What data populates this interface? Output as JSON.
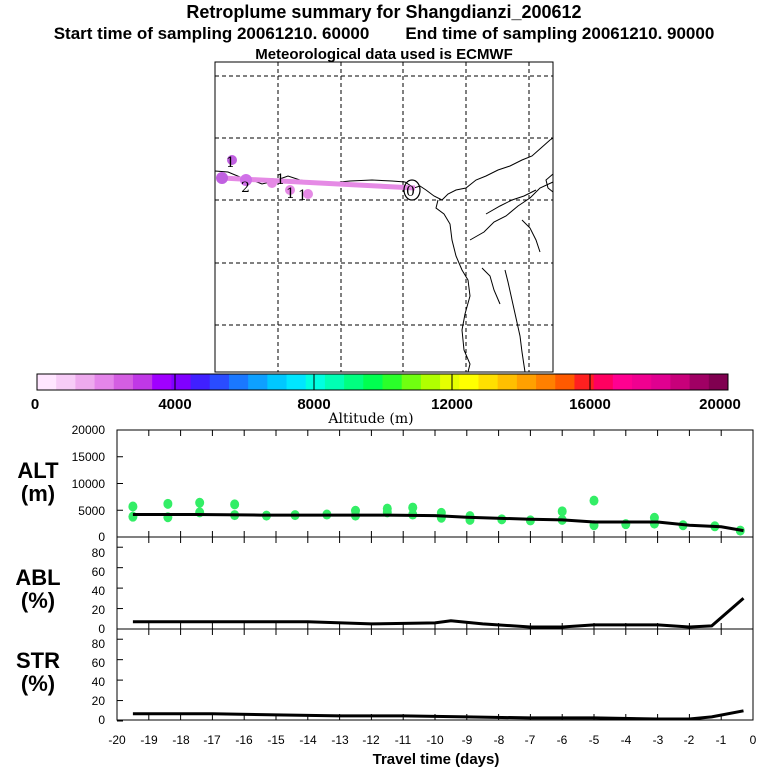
{
  "title": "Retroplume summary for Shangdianzi_200612",
  "start_label": "Start time of sampling 20061210. 60000",
  "end_label": "End time of sampling 20061210. 90000",
  "met_label": "Meteorological data used is ECMWF",
  "colorbar": {
    "label": "Altitude (m)",
    "ticks": [
      "0",
      "4000",
      "8000",
      "12000",
      "16000",
      "20000"
    ],
    "colors": [
      "#ffe6ff",
      "#f7ccf7",
      "#eeaaee",
      "#e485ea",
      "#d45ee2",
      "#c038e6",
      "#a000ff",
      "#8000ff",
      "#4020ff",
      "#2a4cff",
      "#1a78ff",
      "#0ea0ff",
      "#00c8ff",
      "#00e6ff",
      "#00ffe0",
      "#00ffb4",
      "#00ff80",
      "#00ff50",
      "#2aff2a",
      "#70ff10",
      "#b0ff00",
      "#e6ff00",
      "#ffff00",
      "#ffdf00",
      "#ffbf00",
      "#ffa000",
      "#ff8000",
      "#ff5a00",
      "#ff2020",
      "#ff0060",
      "#ff0090",
      "#f00090",
      "#e00090",
      "#c8007a",
      "#a00064",
      "#800050"
    ]
  },
  "map": {
    "plume_labels": [
      "1",
      "2",
      "1",
      "1",
      "1",
      "0"
    ]
  },
  "panels": [
    {
      "label_line1": "ALT",
      "label_line2": "(m)",
      "yticks": [
        "0",
        "5000",
        "10000",
        "15000",
        "20000"
      ]
    },
    {
      "label_line1": "ABL",
      "label_line2": "(%)",
      "yticks": [
        "0",
        "20",
        "40",
        "60",
        "80"
      ]
    },
    {
      "label_line1": "STR",
      "label_line2": "(%)",
      "yticks": [
        "0",
        "20",
        "40",
        "60",
        "80"
      ]
    }
  ],
  "x_axis": {
    "label": "Travel time (days)",
    "ticks": [
      "-20",
      "-19",
      "-18",
      "-17",
      "-16",
      "-15",
      "-14",
      "-13",
      "-12",
      "-11",
      "-10",
      "-9",
      "-8",
      "-7",
      "-6",
      "-5",
      "-4",
      "-3",
      "-2",
      "-1",
      "0"
    ]
  },
  "chart_data": [
    {
      "type": "line",
      "title": "ALT (m)",
      "xlabel": "Travel time (days)",
      "ylabel": "ALT (m)",
      "xlim": [
        -20,
        0
      ],
      "ylim": [
        0,
        20000
      ],
      "x": [
        -19.5,
        -17.5,
        -15.5,
        -13.5,
        -11.5,
        -10.0,
        -9.0,
        -7.0,
        -6.0,
        -5.0,
        -4.0,
        -3.0,
        -2.0,
        -1.0,
        -0.3
      ],
      "series": [
        {
          "name": "mean altitude",
          "values": [
            4200,
            4200,
            4100,
            4100,
            4100,
            4000,
            3700,
            3300,
            3200,
            2800,
            2800,
            2800,
            2200,
            1900,
            1200
          ]
        }
      ],
      "scatter": {
        "x": [
          -19.5,
          -19.5,
          -18.4,
          -18.4,
          -17.4,
          -17.4,
          -16.3,
          -16.3,
          -15.3,
          -14.4,
          -13.4,
          -12.5,
          -12.5,
          -11.5,
          -11.5,
          -10.7,
          -10.7,
          -9.8,
          -9.8,
          -8.9,
          -8.9,
          -7.9,
          -7.0,
          -6.0,
          -6.0,
          -5.0,
          -5.0,
          -4.0,
          -3.1,
          -3.1,
          -2.2,
          -1.2,
          -0.4
        ],
        "y": [
          5700,
          3800,
          6200,
          3700,
          6400,
          4600,
          6100,
          4100,
          4000,
          4100,
          4200,
          4000,
          4900,
          4600,
          5300,
          4200,
          5500,
          3600,
          4500,
          3200,
          3900,
          3300,
          3100,
          3200,
          4800,
          2200,
          6800,
          2400,
          2500,
          3600,
          2200,
          2000,
          1200
        ],
        "color": "#33ee66"
      }
    },
    {
      "type": "line",
      "title": "ABL (%)",
      "xlabel": "Travel time (days)",
      "ylabel": "ABL (%)",
      "xlim": [
        -20,
        0
      ],
      "ylim": [
        0,
        90
      ],
      "x": [
        -19.5,
        -18,
        -16,
        -14,
        -12,
        -10,
        -9.5,
        -8.5,
        -7,
        -6,
        -5,
        -4,
        -3,
        -2,
        -1.3,
        -0.3
      ],
      "series": [
        {
          "name": "ABL",
          "values": [
            7,
            7,
            7,
            7,
            5,
            6,
            8,
            5,
            2,
            2,
            4,
            4,
            4,
            2,
            3,
            30
          ]
        }
      ]
    },
    {
      "type": "line",
      "title": "STR (%)",
      "xlabel": "Travel time (days)",
      "ylabel": "STR (%)",
      "xlim": [
        -20,
        0
      ],
      "ylim": [
        0,
        90
      ],
      "x": [
        -19.5,
        -17,
        -15,
        -13,
        -11,
        -9,
        -7,
        -5,
        -3,
        -2,
        -1.3,
        -0.3
      ],
      "series": [
        {
          "name": "STR",
          "values": [
            7,
            7,
            6,
            5,
            5,
            4,
            3,
            3,
            2,
            2,
            4,
            10
          ]
        }
      ]
    }
  ]
}
